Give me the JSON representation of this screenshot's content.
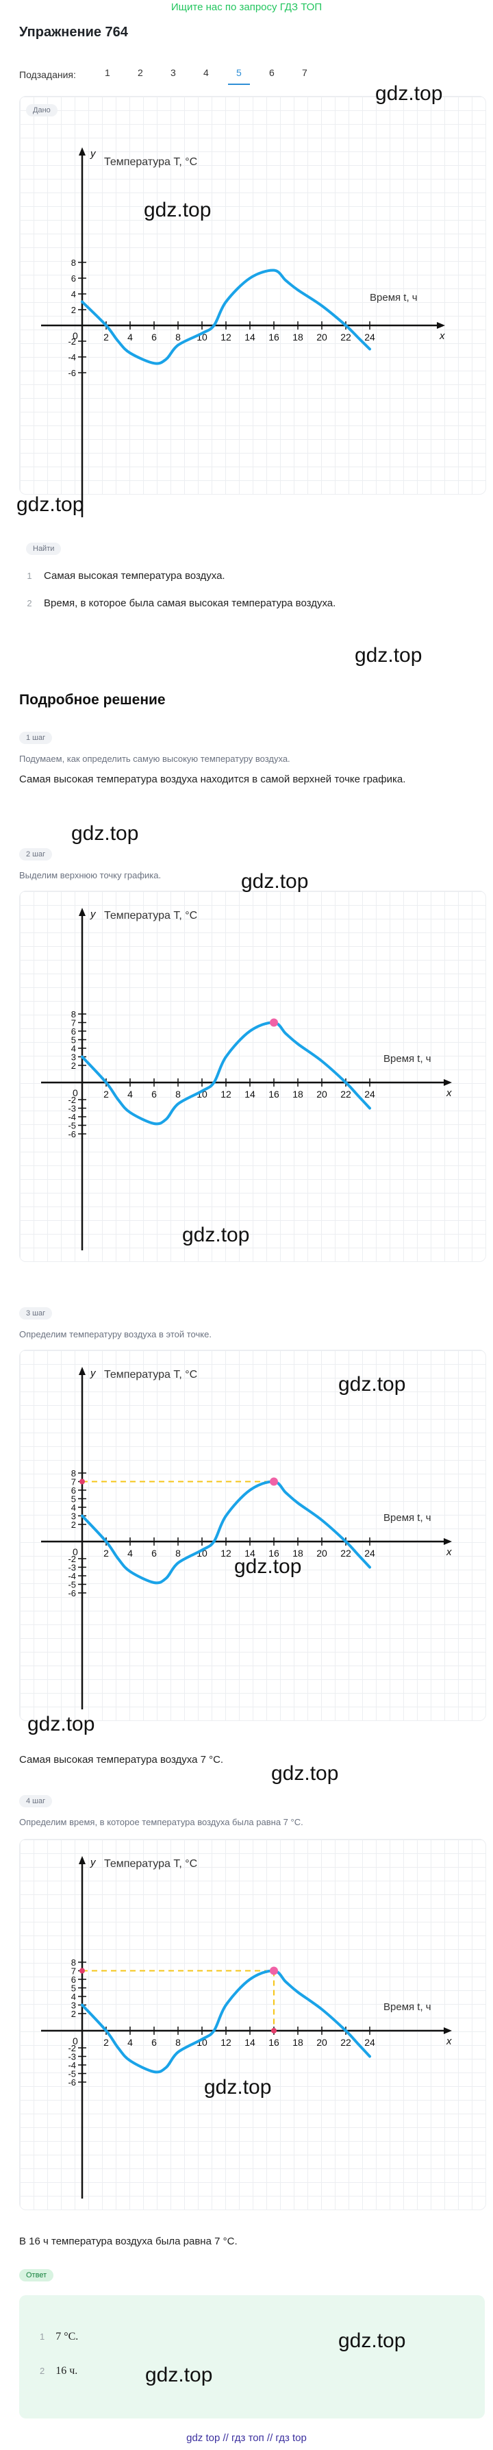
{
  "header": {
    "top_link": "Ищите нас по запросу ГДЗ ТОП",
    "title": "Упражнение 764",
    "subtasks_label": "Подзадания:",
    "subtasks": [
      "1",
      "2",
      "3",
      "4",
      "5",
      "6",
      "7"
    ],
    "active_subtask": "5"
  },
  "given": {
    "chip": "Дано"
  },
  "find": {
    "chip": "Найти",
    "items": [
      {
        "n": "1",
        "text": "Самая высокая температура воздуха."
      },
      {
        "n": "2",
        "text": "Время, в которое была самая высокая температура воздуха."
      }
    ]
  },
  "solution": {
    "heading": "Подробное решение",
    "steps": [
      {
        "chip": "1 шаг",
        "hint": "Подумаем, как определить самую высокую температуру воздуха.",
        "text": "Самая высокая температура воздуха находится в самой верхней точке графика."
      },
      {
        "chip": "2 шаг",
        "hint": "Выделим верхнюю точку графика."
      },
      {
        "chip": "3 шаг",
        "hint": "Определим температуру воздуха в этой точке.",
        "result": "Самая высокая температура воздуха 7 °C."
      },
      {
        "chip": "4 шаг",
        "hint": "Определим время, в которое температура воздуха была равна 7 °C.",
        "result": "В 16 ч температура воздуха была равна 7 °C."
      }
    ]
  },
  "answer": {
    "chip": "Ответ",
    "items": [
      {
        "n": "1",
        "text": "7 °C."
      },
      {
        "n": "2",
        "text": "16 ч."
      }
    ]
  },
  "watermark": "gdz.top",
  "footer": "gdz top  // гдз топ  // гдз top",
  "chart_data": [
    {
      "type": "line",
      "title": "Температура T, °C",
      "xlabel": "Время t, ч",
      "ylabel": "y",
      "x_axis_letter": "x",
      "xlim": [
        0,
        25
      ],
      "ylim": [
        -10,
        10
      ],
      "x_ticks": [
        "2",
        "4",
        "6",
        "8",
        "10",
        "12",
        "14",
        "16",
        "18",
        "20",
        "22",
        "24"
      ],
      "y_ticks": [
        "8",
        "6",
        "4",
        "2",
        "-2",
        "-4",
        "-6"
      ],
      "origin_label": "0",
      "series": [
        {
          "x": [
            0,
            2,
            3,
            4,
            6,
            7,
            8,
            10,
            11,
            12,
            14,
            16,
            17,
            18,
            20,
            22,
            23,
            24
          ],
          "y": [
            3,
            0,
            -2,
            -3.5,
            -4.8,
            -4.3,
            -2.5,
            -1,
            0,
            3,
            6,
            7,
            5.7,
            4.5,
            2.5,
            0,
            -1.5,
            -3
          ]
        }
      ],
      "color": "#1aa3e8"
    },
    {
      "type": "line",
      "title": "Температура T, °C",
      "xlabel": "Время t, ч",
      "ylabel": "y",
      "x_axis_letter": "x",
      "xlim": [
        0,
        25
      ],
      "ylim": [
        -10,
        10
      ],
      "x_ticks": [
        "2",
        "4",
        "6",
        "8",
        "10",
        "12",
        "14",
        "16",
        "18",
        "20",
        "22",
        "24"
      ],
      "y_ticks": [
        "8",
        "7",
        "6",
        "5",
        "4",
        "3",
        "2",
        "-2",
        "-3",
        "-4",
        "-5",
        "-6"
      ],
      "origin_label": "0",
      "series": [
        {
          "x": [
            0,
            2,
            3,
            4,
            6,
            7,
            8,
            10,
            11,
            12,
            14,
            16,
            17,
            18,
            20,
            22,
            23,
            24
          ],
          "y": [
            3,
            0,
            -2,
            -3.5,
            -4.8,
            -4.3,
            -2.5,
            -1,
            0,
            3,
            6,
            7,
            5.7,
            4.5,
            2.5,
            0,
            -1.5,
            -3
          ]
        }
      ],
      "highlight_point": {
        "x": 16,
        "y": 7
      },
      "color": "#1aa3e8"
    },
    {
      "type": "line",
      "title": "Температура T, °C",
      "xlabel": "Время t, ч",
      "ylabel": "y",
      "x_axis_letter": "x",
      "xlim": [
        0,
        25
      ],
      "ylim": [
        -10,
        10
      ],
      "x_ticks": [
        "2",
        "4",
        "6",
        "8",
        "10",
        "12",
        "14",
        "16",
        "18",
        "20",
        "22",
        "24"
      ],
      "y_ticks": [
        "8",
        "7",
        "6",
        "5",
        "4",
        "3",
        "2",
        "-2",
        "-3",
        "-4",
        "-5",
        "-6"
      ],
      "origin_label": "0",
      "series": [
        {
          "x": [
            0,
            2,
            3,
            4,
            6,
            7,
            8,
            10,
            11,
            12,
            14,
            16,
            17,
            18,
            20,
            22,
            23,
            24
          ],
          "y": [
            3,
            0,
            -2,
            -3.5,
            -4.8,
            -4.3,
            -2.5,
            -1,
            0,
            3,
            6,
            7,
            5.7,
            4.5,
            2.5,
            0,
            -1.5,
            -3
          ]
        }
      ],
      "highlight_point": {
        "x": 16,
        "y": 7
      },
      "guide_y": 7,
      "color": "#1aa3e8"
    },
    {
      "type": "line",
      "title": "Температура T, °C",
      "xlabel": "Время t, ч",
      "ylabel": "y",
      "x_axis_letter": "x",
      "xlim": [
        0,
        25
      ],
      "ylim": [
        -10,
        10
      ],
      "x_ticks": [
        "2",
        "4",
        "6",
        "8",
        "10",
        "12",
        "14",
        "16",
        "18",
        "20",
        "22",
        "24"
      ],
      "y_ticks": [
        "8",
        "7",
        "6",
        "5",
        "4",
        "3",
        "2",
        "-2",
        "-3",
        "-4",
        "-5",
        "-6"
      ],
      "origin_label": "0",
      "series": [
        {
          "x": [
            0,
            2,
            3,
            4,
            6,
            7,
            8,
            10,
            11,
            12,
            14,
            16,
            17,
            18,
            20,
            22,
            23,
            24
          ],
          "y": [
            3,
            0,
            -2,
            -3.5,
            -4.8,
            -4.3,
            -2.5,
            -1,
            0,
            3,
            6,
            7,
            5.7,
            4.5,
            2.5,
            0,
            -1.5,
            -3
          ]
        }
      ],
      "highlight_point": {
        "x": 16,
        "y": 7
      },
      "guide_y": 7,
      "guide_x": 16,
      "color": "#1aa3e8"
    }
  ]
}
